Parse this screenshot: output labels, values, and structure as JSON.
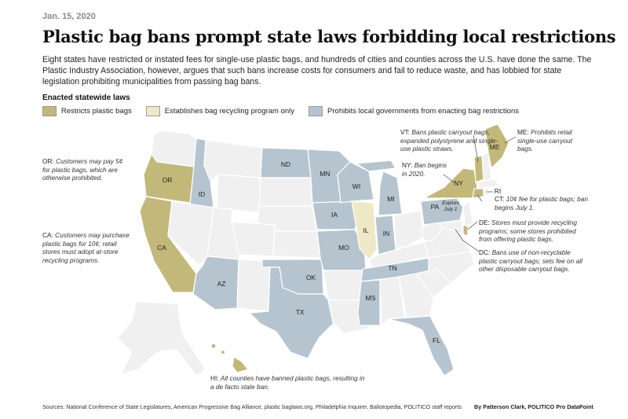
{
  "date": "Jan. 15, 2020",
  "title": "Plastic bag bans prompt state laws forbidding local restrictions",
  "intro": "Eight states have restricted or instated fees for single-use plastic bags, and hundreds of cities and counties across the U.S. have done the same. The Plastic Industry Association, however, argues that such bans increase costs for consumers and fail to reduce waste, and has lobbied for state legislation prohibiting municipalities from passing bag bans.",
  "legend": {
    "title": "Enacted statewide laws",
    "items": [
      {
        "label": "Restricts plastic bags",
        "color": "#c2b87a"
      },
      {
        "label": "Establishes bag recycling program only",
        "color": "#efe8c7"
      },
      {
        "label": "Prohibits local governments from enacting bag restrictions",
        "color": "#b5c4cf"
      }
    ]
  },
  "colors": {
    "none": "#f0f0f0",
    "restricts": "#c2b87a",
    "recycling": "#efe8c7",
    "prohibits": "#b5c4cf"
  },
  "states": {
    "restricts": [
      "OR",
      "CA",
      "NY",
      "VT",
      "ME",
      "CT",
      "DE",
      "HI"
    ],
    "recycling": [
      "IL"
    ],
    "prohibits": [
      "ID",
      "AZ",
      "ND",
      "MN",
      "IA",
      "MO",
      "OK",
      "TX",
      "WI",
      "MI",
      "IN",
      "TN",
      "MS",
      "FL",
      "PA"
    ]
  },
  "map_labels": {
    "OR": "OR",
    "CA": "CA",
    "ID": "ID",
    "AZ": "AZ",
    "ND": "ND",
    "MN": "MN",
    "WI": "WI",
    "MI": "MI",
    "IA": "IA",
    "IL": "IL",
    "IN": "IN",
    "MO": "MO",
    "OK": "OK",
    "TX": "TX",
    "TN": "TN",
    "MS": "MS",
    "FL": "FL",
    "PA": "PA",
    "PA_note": "Expires July 1",
    "NY": "NY",
    "VT": "VT",
    "ME": "ME",
    "RI": "RI",
    "CT": "CT",
    "DE": "DE",
    "DC": "DC"
  },
  "annotations": {
    "or": {
      "code": "OR:",
      "text": "Customers may pay 5¢ for plastic bags, which are otherwise prohibited."
    },
    "ca": {
      "code": "CA:",
      "text": "Customers may purchase plastic bags for 10¢; retail stores must adopt at-store recycling programs."
    },
    "vt": {
      "code": "VT:",
      "text": "Bans plastic carryout bags, expanded polystyrene and single-use plastic straws."
    },
    "me": {
      "code": "ME:",
      "text": "Prohibits retail single-use carryout bags."
    },
    "ny": {
      "code": "NY:",
      "text": "Ban begins in 2020."
    },
    "ct": {
      "code": "CT:",
      "text": "10¢ fee for plastic bags; ban begins July 1."
    },
    "de": {
      "code": "DE:",
      "text": "Stores must provide recycling programs; some stores prohibited from offering plastic bags."
    },
    "dc": {
      "code": "DC:",
      "text": "Bans use of non-recyclable plastic carryout bags; sets fee on all other disposable carryout bags."
    },
    "hi": {
      "code": "HI:",
      "text": "All counties have banned plastic bags, resulting in a de facto state ban."
    }
  },
  "sources": "Sources: National Conference of State Legislatures, American Progressive Bag Alliance, plastic baglaws.org, Philadelphia Inquirer, Ballotopedia, POLITICO staff reports",
  "byline": "By Patterson Clark, POLITICO Pro DataPoint"
}
